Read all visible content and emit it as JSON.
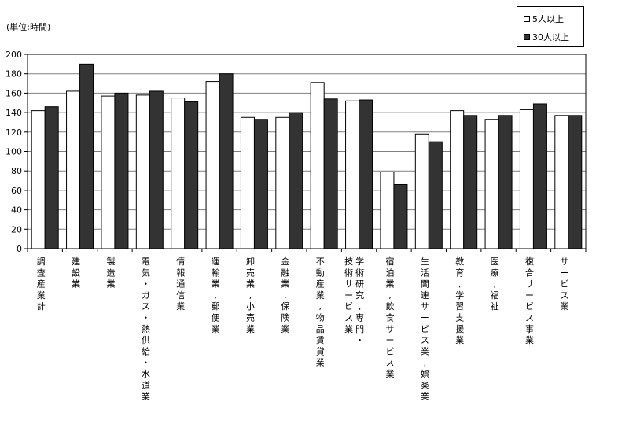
{
  "chart_data": {
    "type": "bar",
    "unit_label": "(単位:時間)",
    "ylim": [
      0,
      200
    ],
    "ytick_step": 20,
    "grid": true,
    "legend_position": "top-right",
    "categories": [
      "調査産業計",
      "建設業",
      "製造業",
      "電気・ガス・熱供給・水道業",
      "情報通信業",
      "運輸業,郵便業",
      "卸売業,小売業",
      "金融業,保険業",
      "不動産業,物品賃貸業",
      "学術研究,専門・技術サービス業",
      "宿泊業,飲食サービス業",
      "生活関連サービス業,娯楽業",
      "教育,学習支援業",
      "医療,福祉",
      "複合サービス事業",
      "サービス業"
    ],
    "category_label_columns": [
      [
        "調査産業計"
      ],
      [
        "建設業"
      ],
      [
        "製造業"
      ],
      [
        "電気・ガス・熱供給・水道業"
      ],
      [
        "情報通信業"
      ],
      [
        "運輸業,郵便業"
      ],
      [
        "卸売業,小売業"
      ],
      [
        "金融業,保険業"
      ],
      [
        "不動産業,物品賃貸業"
      ],
      [
        "学術研究,専門・",
        "技術サービス業"
      ],
      [
        "宿泊業,飲食サービス業"
      ],
      [
        "生活関連サービス業,娯楽業"
      ],
      [
        "教育,学習支援業"
      ],
      [
        "医療,福祉"
      ],
      [
        "複合サービス事業"
      ],
      [
        "サービス業"
      ]
    ],
    "series": [
      {
        "name": "5人以上",
        "color": "#ffffff",
        "values": [
          142,
          162,
          157,
          158,
          155,
          172,
          135,
          135,
          171,
          152,
          79,
          118,
          142,
          133,
          143,
          137
        ]
      },
      {
        "name": "30人以上",
        "color": "#333333",
        "values": [
          146,
          190,
          160,
          162,
          151,
          180,
          133,
          140,
          154,
          153,
          66,
          110,
          137,
          137,
          149,
          137
        ]
      }
    ]
  }
}
